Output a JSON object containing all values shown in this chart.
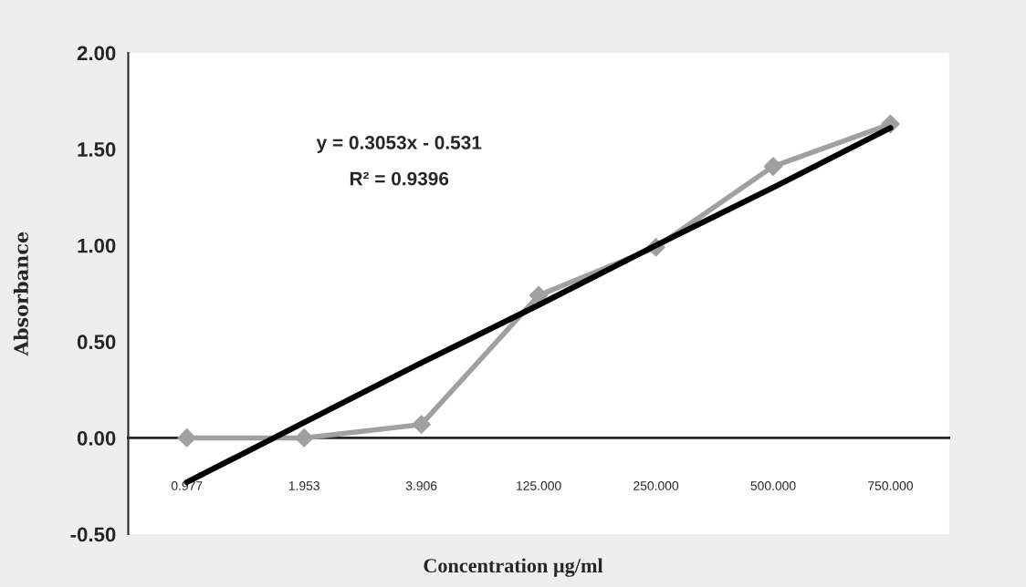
{
  "chart_data": {
    "type": "line",
    "xlabel": "Concentration µg/ml",
    "ylabel": "Absorbance",
    "categories": [
      "0.977",
      "1.953",
      "3.906",
      "125.000",
      "250.000",
      "500.000",
      "750.000"
    ],
    "series": [
      {
        "color": "#a0a0a0",
        "marker": "diamond",
        "values": [
          0.0,
          0.0,
          0.07,
          0.74,
          0.99,
          1.41,
          1.63
        ]
      },
      {
        "color": "#000000",
        "marker": "none",
        "values": [
          -0.23,
          0.08,
          0.39,
          0.69,
          1.0,
          1.3,
          1.61
        ]
      }
    ],
    "annotations": [
      "y = 0.3053x - 0.531",
      "R² = 0.9396"
    ],
    "ylim": [
      -0.5,
      2.0
    ],
    "yticks": [
      {
        "value": -0.5,
        "label": "-0.50"
      },
      {
        "value": 0,
        "label": "0.00"
      },
      {
        "value": 0.5,
        "label": "0.50"
      },
      {
        "value": 1.0,
        "label": "1.00"
      },
      {
        "value": 1.5,
        "label": "1.50"
      },
      {
        "value": 2.0,
        "label": "2.00"
      }
    ],
    "line_style": "solid"
  }
}
